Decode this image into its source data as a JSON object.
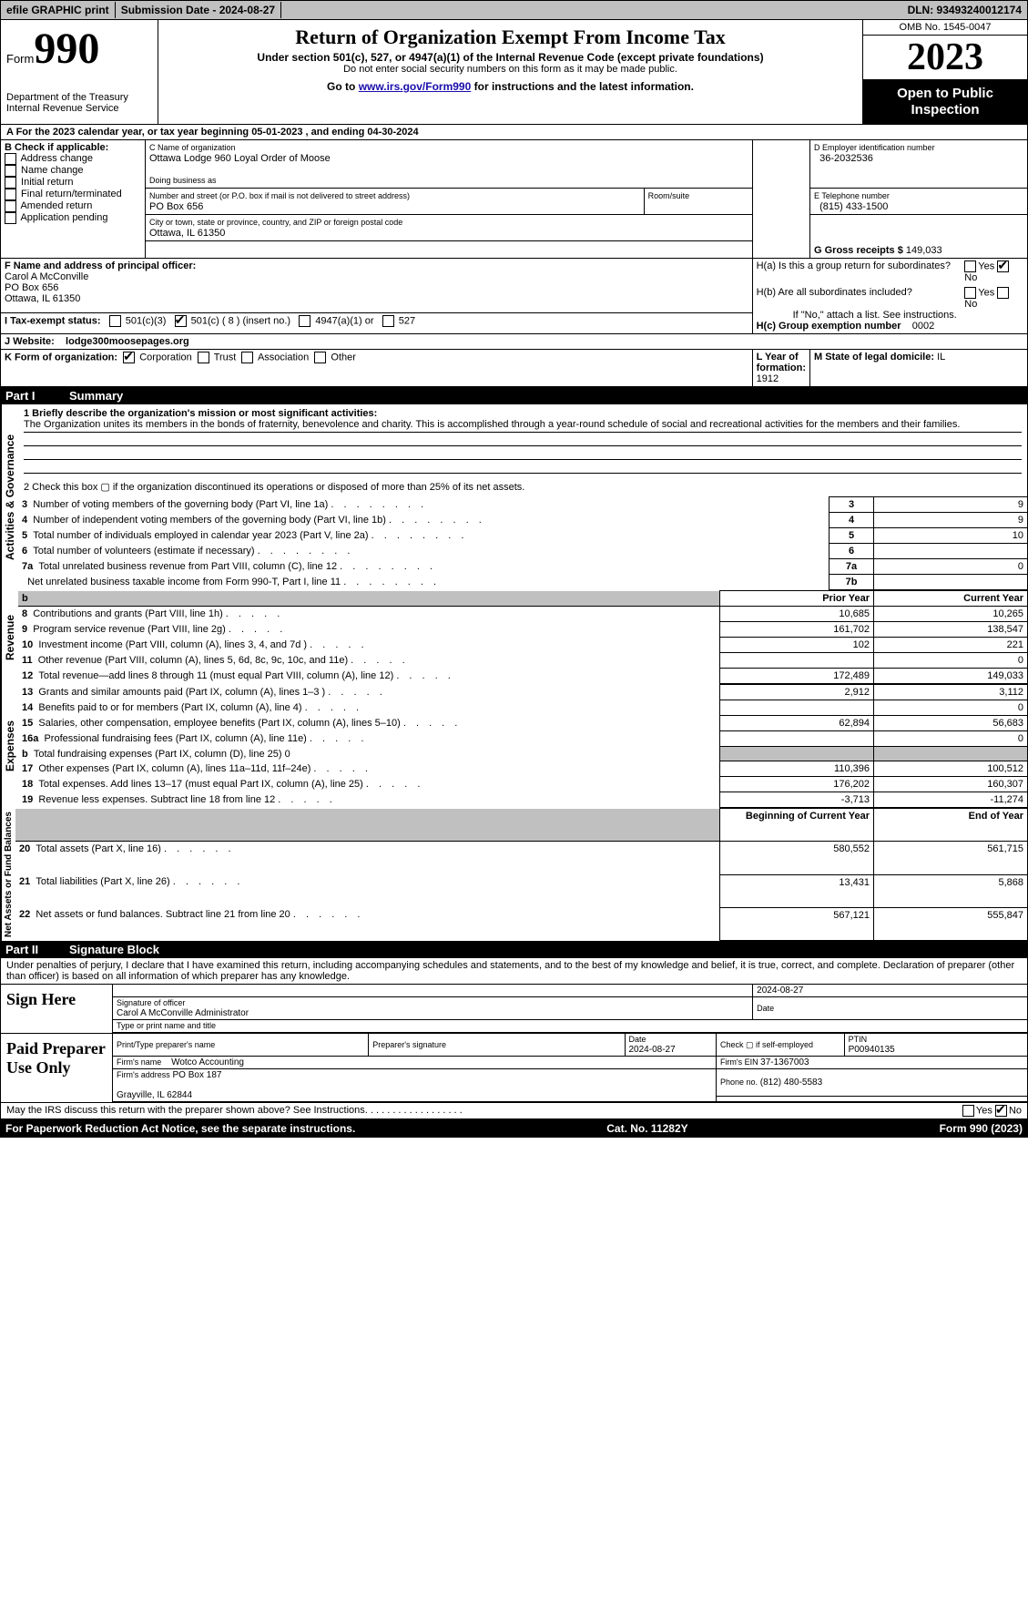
{
  "header_bar": {
    "efile": "efile GRAPHIC print",
    "submission": "Submission Date - 2024-08-27",
    "dln": "DLN: 93493240012174"
  },
  "top": {
    "form_label": "Form",
    "form_num": "990",
    "dept_lines": "Department of the Treasury\nInternal Revenue Service",
    "title": "Return of Organization Exempt From Income Tax",
    "sub1": "Under section 501(c), 527, or 4947(a)(1) of the Internal Revenue Code (except private foundations)",
    "sub2": "Do not enter social security numbers on this form as it may be made public.",
    "sub3_pre": "Go to ",
    "sub3_link": "www.irs.gov/Form990",
    "sub3_post": " for instructions and the latest information.",
    "omb": "OMB No. 1545-0047",
    "year": "2023",
    "open_pub": "Open to Public Inspection"
  },
  "row_a": "A  For the 2023 calendar year, or tax year beginning 05-01-2023   , and ending 04-30-2024",
  "box_b": {
    "label": "B Check if applicable:",
    "items": [
      "Address change",
      "Name change",
      "Initial return",
      "Final return/terminated",
      "Amended return",
      "Application pending"
    ]
  },
  "box_c": {
    "name_label": "C Name of organization",
    "name": "Ottawa Lodge 960 Loyal Order of Moose",
    "dba_label": "Doing business as",
    "dba": "",
    "street_label": "Number and street (or P.O. box if mail is not delivered to street address)",
    "street": "PO Box 656",
    "room_label": "Room/suite",
    "city_label": "City or town, state or province, country, and ZIP or foreign postal code",
    "city": "Ottawa, IL  61350"
  },
  "box_d": {
    "label": "D Employer identification number",
    "value": "36-2032536"
  },
  "box_e": {
    "label": "E Telephone number",
    "value": "(815) 433-1500"
  },
  "box_g": {
    "label": "G Gross receipts $",
    "value": "149,033"
  },
  "box_f": {
    "label": "F  Name and address of principal officer:",
    "name": "Carol A McConville",
    "addr1": "PO Box 656",
    "addr2": "Ottawa, IL  61350"
  },
  "box_h": {
    "ha_label": "H(a)  Is this a group return for subordinates?",
    "hb_label": "H(b)  Are all subordinates included?",
    "hb_note": "If \"No,\" attach a list. See instructions.",
    "hc_label": "H(c)  Group exemption number ",
    "hc_value": "0002"
  },
  "row_i": {
    "label": "I  Tax-exempt status:",
    "c3": "501(c)(3)",
    "c": "501(c) ( 8 ) (insert no.)",
    "a1": "4947(a)(1) or",
    "s527": "527"
  },
  "row_j": {
    "label": "J  Website:",
    "value": "lodge300moosepages.org"
  },
  "row_k": {
    "label": "K Form of organization:",
    "corp": "Corporation",
    "trust": "Trust",
    "assoc": "Association",
    "other": "Other"
  },
  "row_l": {
    "label": "L Year of formation:",
    "value": "1912"
  },
  "row_m": {
    "label": "M State of legal domicile:",
    "value": "IL"
  },
  "part1": {
    "label": "Part I",
    "title": "Summary"
  },
  "summary": {
    "q1_label": "1  Briefly describe the organization's mission or most significant activities:",
    "q1_text": "The Organization unites its members in the bonds of fraternity, benevolence and charity. This is accomplished through a year-round schedule of social and recreational activities for the members and their families.",
    "q2_text": "2  Check this box  ▢  if the organization discontinued its operations or disposed of more than 25% of its net assets.",
    "lines_gov": [
      {
        "n": "3",
        "d": "Number of voting members of the governing body (Part VI, line 1a)",
        "k": "3",
        "v": "9"
      },
      {
        "n": "4",
        "d": "Number of independent voting members of the governing body (Part VI, line 1b)",
        "k": "4",
        "v": "9"
      },
      {
        "n": "5",
        "d": "Total number of individuals employed in calendar year 2023 (Part V, line 2a)",
        "k": "5",
        "v": "10"
      },
      {
        "n": "6",
        "d": "Total number of volunteers (estimate if necessary)",
        "k": "6",
        "v": ""
      },
      {
        "n": "7a",
        "d": "Total unrelated business revenue from Part VIII, column (C), line 12",
        "k": "7a",
        "v": "0"
      },
      {
        "n": "",
        "d": "Net unrelated business taxable income from Form 990-T, Part I, line 11",
        "k": "7b",
        "v": ""
      }
    ],
    "col_prior": "Prior Year",
    "col_current": "Current Year",
    "revenue": [
      {
        "n": "8",
        "d": "Contributions and grants (Part VIII, line 1h)",
        "p": "10,685",
        "c": "10,265"
      },
      {
        "n": "9",
        "d": "Program service revenue (Part VIII, line 2g)",
        "p": "161,702",
        "c": "138,547"
      },
      {
        "n": "10",
        "d": "Investment income (Part VIII, column (A), lines 3, 4, and 7d )",
        "p": "102",
        "c": "221"
      },
      {
        "n": "11",
        "d": "Other revenue (Part VIII, column (A), lines 5, 6d, 8c, 9c, 10c, and 11e)",
        "p": "",
        "c": "0"
      },
      {
        "n": "12",
        "d": "Total revenue—add lines 8 through 11 (must equal Part VIII, column (A), line 12)",
        "p": "172,489",
        "c": "149,033"
      }
    ],
    "expenses": [
      {
        "n": "13",
        "d": "Grants and similar amounts paid (Part IX, column (A), lines 1–3 )",
        "p": "2,912",
        "c": "3,112"
      },
      {
        "n": "14",
        "d": "Benefits paid to or for members (Part IX, column (A), line 4)",
        "p": "",
        "c": "0"
      },
      {
        "n": "15",
        "d": "Salaries, other compensation, employee benefits (Part IX, column (A), lines 5–10)",
        "p": "62,894",
        "c": "56,683"
      },
      {
        "n": "16a",
        "d": "Professional fundraising fees (Part IX, column (A), line 11e)",
        "p": "",
        "c": "0"
      },
      {
        "n": "b",
        "d": "Total fundraising expenses (Part IX, column (D), line 25) 0",
        "p": "SHADED",
        "c": "SHADED"
      },
      {
        "n": "17",
        "d": "Other expenses (Part IX, column (A), lines 11a–11d, 11f–24e)",
        "p": "110,396",
        "c": "100,512"
      },
      {
        "n": "18",
        "d": "Total expenses. Add lines 13–17 (must equal Part IX, column (A), line 25)",
        "p": "176,202",
        "c": "160,307"
      },
      {
        "n": "19",
        "d": "Revenue less expenses. Subtract line 18 from line 12",
        "p": "-3,713",
        "c": "-11,274"
      }
    ],
    "col_begin": "Beginning of Current Year",
    "col_end": "End of Year",
    "net": [
      {
        "n": "20",
        "d": "Total assets (Part X, line 16)",
        "p": "580,552",
        "c": "561,715"
      },
      {
        "n": "21",
        "d": "Total liabilities (Part X, line 26)",
        "p": "13,431",
        "c": "5,868"
      },
      {
        "n": "22",
        "d": "Net assets or fund balances. Subtract line 21 from line 20",
        "p": "567,121",
        "c": "555,847"
      }
    ]
  },
  "vert": {
    "gov": "Activities & Governance",
    "rev": "Revenue",
    "exp": "Expenses",
    "net": "Net Assets or Fund Balances"
  },
  "part2": {
    "label": "Part II",
    "title": "Signature Block"
  },
  "penalty": "Under penalties of perjury, I declare that I have examined this return, including accompanying schedules and statements, and to the best of my knowledge and belief, it is true, correct, and complete. Declaration of preparer (other than officer) is based on all information of which preparer has any knowledge.",
  "sign": {
    "here": "Sign Here",
    "sig_date": "2024-08-27",
    "sig_label": "Signature of officer",
    "sig_name": "Carol A McConville  Administrator",
    "sig_type": "Type or print name and title",
    "date_label": "Date",
    "paid": "Paid Preparer Use Only",
    "prep_name_label": "Print/Type preparer's name",
    "prep_sig_label": "Preparer's signature",
    "prep_date": "2024-08-27",
    "self_emp": "Check ▢ if self-employed",
    "ptin_label": "PTIN",
    "ptin": "P00940135",
    "firm_name_label": "Firm's name ",
    "firm_name": "Wotco Accounting",
    "firm_ein_label": "Firm's EIN ",
    "firm_ein": "37-1367003",
    "firm_addr_label": "Firm's address",
    "firm_addr1": "PO Box 187",
    "firm_addr2": "Grayville, IL  62844",
    "phone_label": "Phone no.",
    "phone": "(812) 480-5583"
  },
  "may_irs": "May the IRS discuss this return with the preparer shown above? See Instructions.",
  "footer": {
    "left": "For Paperwork Reduction Act Notice, see the separate instructions.",
    "mid": "Cat. No. 11282Y",
    "right": "Form 990 (2023)"
  },
  "yn": {
    "yes": "Yes",
    "no": "No"
  }
}
